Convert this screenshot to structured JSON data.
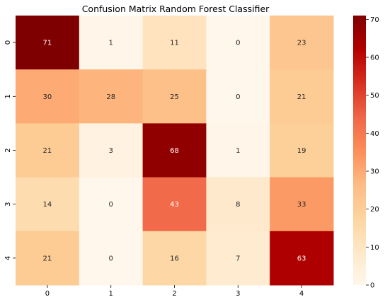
{
  "chart_data": {
    "type": "heatmap",
    "title": "Confusion Matrix Random Forest Classifier",
    "x_categories": [
      "0",
      "1",
      "2",
      "3",
      "4"
    ],
    "y_categories": [
      "0",
      "1",
      "2",
      "3",
      "4"
    ],
    "values": [
      [
        71,
        1,
        11,
        0,
        23
      ],
      [
        30,
        28,
        25,
        0,
        21
      ],
      [
        21,
        3,
        68,
        1,
        19
      ],
      [
        14,
        0,
        43,
        8,
        33
      ],
      [
        21,
        0,
        16,
        7,
        63
      ]
    ],
    "colormap": "OrRd",
    "vmin": 0,
    "vmax": 71,
    "colorbar_ticks": [
      0,
      10,
      20,
      30,
      40,
      50,
      60,
      70
    ],
    "xlabel": "",
    "ylabel": ""
  }
}
